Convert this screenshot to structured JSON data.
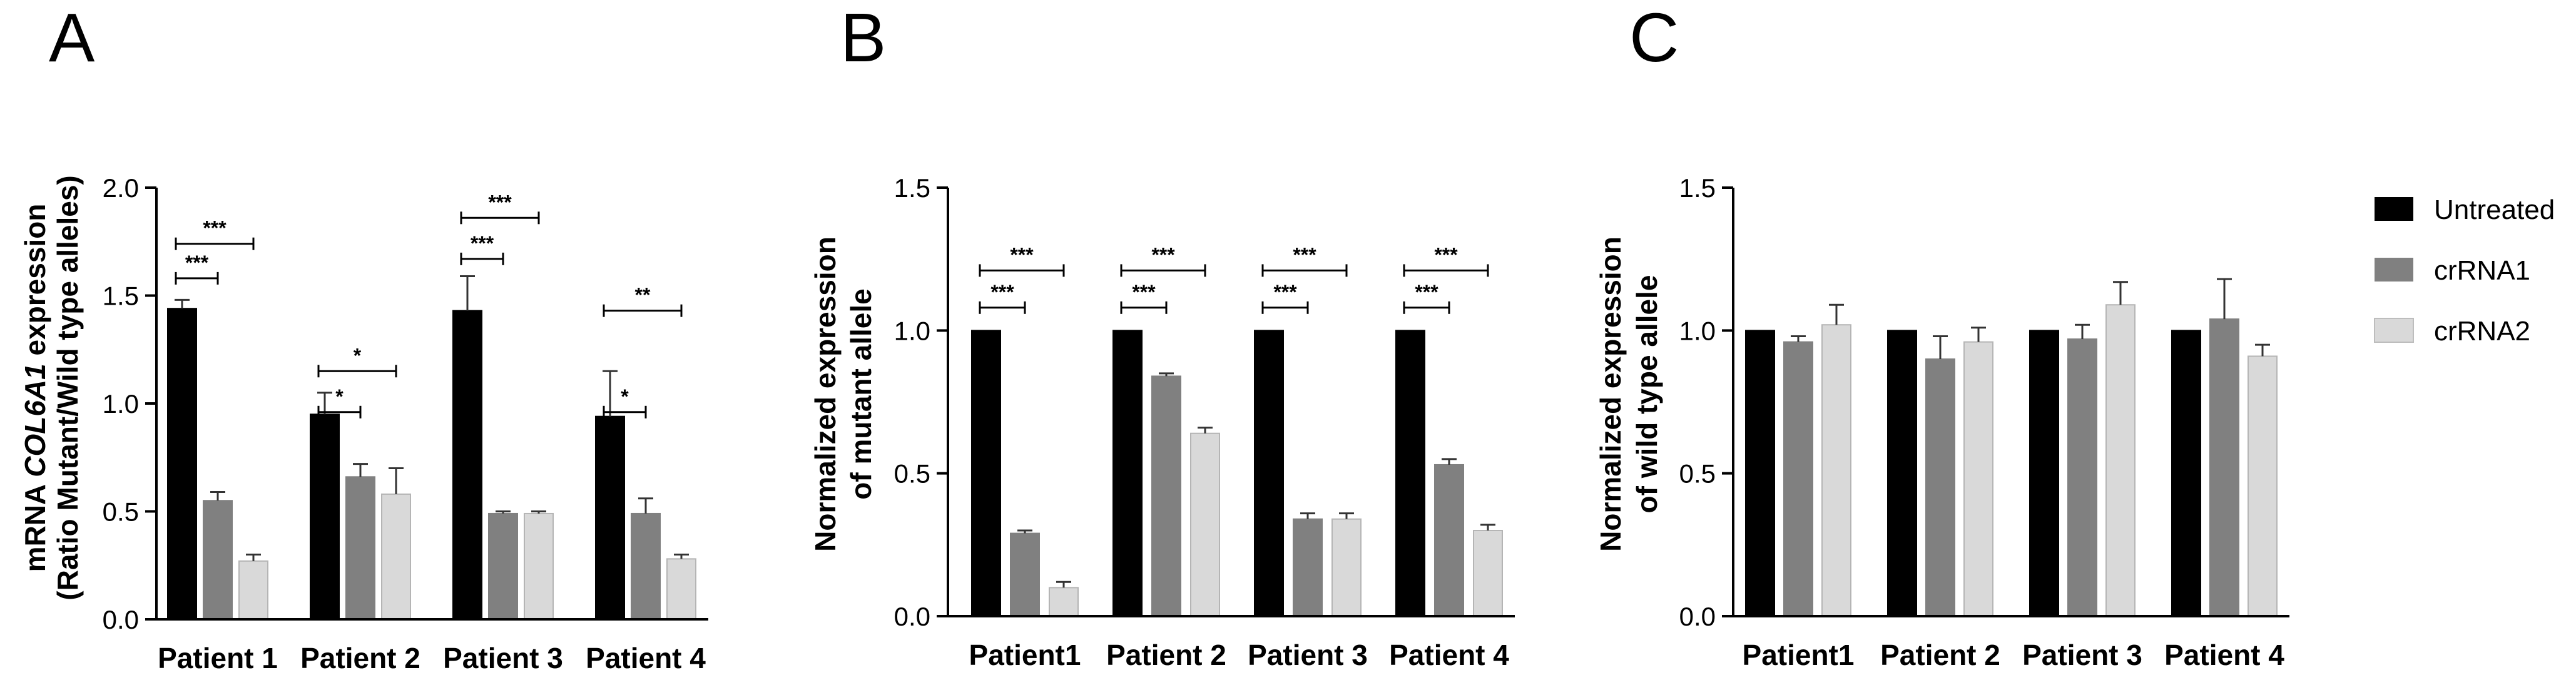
{
  "colors": {
    "Untreated": "#000000",
    "crRNA1": "#808080",
    "crRNA2": "#d9d9d9"
  },
  "legend": {
    "position": "right",
    "entries": [
      {
        "name": "Untreated",
        "color": "#000000"
      },
      {
        "name": "crRNA1",
        "color": "#808080"
      },
      {
        "name": "crRNA2",
        "color": "#d9d9d9"
      }
    ]
  },
  "chart_data": [
    {
      "type": "bar",
      "panel_letter": "A",
      "ylabel_line1_prefix": "mRNA ",
      "ylabel_line1_gene": "COL6A1",
      "ylabel_line1_suffix": " expression",
      "ylabel_line2": "(Ratio Mutant/Wild type alleles)",
      "ylim": [
        0,
        2.0
      ],
      "yticks": [
        "0.0",
        "0.5",
        "1.0",
        "1.5",
        "2.0"
      ],
      "categories": [
        "Patient 1",
        "Patient 2",
        "Patient 3",
        "Patient 4"
      ],
      "series": [
        {
          "name": "Untreated",
          "values": [
            1.44,
            0.95,
            1.43,
            0.94
          ],
          "errors": [
            0.04,
            0.1,
            0.16,
            0.21
          ]
        },
        {
          "name": "crRNA1",
          "values": [
            0.55,
            0.66,
            0.49,
            0.49
          ],
          "errors": [
            0.04,
            0.06,
            0.01,
            0.07
          ]
        },
        {
          "name": "crRNA2",
          "values": [
            0.27,
            0.58,
            0.49,
            0.28
          ],
          "errors": [
            0.03,
            0.12,
            0.01,
            0.02
          ]
        }
      ],
      "significance": [
        [
          {
            "from": 0,
            "to": 1,
            "label": "***",
            "y": 1.58
          },
          {
            "from": 0,
            "to": 2,
            "label": "***",
            "y": 1.74
          }
        ],
        [
          {
            "from": 0,
            "to": 1,
            "label": "*",
            "y": 0.96
          },
          {
            "from": 0,
            "to": 2,
            "label": "*",
            "y": 1.15
          }
        ],
        [
          {
            "from": 0,
            "to": 1,
            "label": "***",
            "y": 1.67
          },
          {
            "from": 0,
            "to": 2,
            "label": "***",
            "y": 1.86
          }
        ],
        [
          {
            "from": 0,
            "to": 1,
            "label": "*",
            "y": 0.96
          },
          {
            "from": 0,
            "to": 2,
            "label": "**",
            "y": 1.43
          }
        ]
      ]
    },
    {
      "type": "bar",
      "panel_letter": "B",
      "ylabel_line1": "Normalized expression",
      "ylabel_line2": "of mutant allele",
      "ylim": [
        0,
        1.5
      ],
      "yticks": [
        "0.0",
        "0.5",
        "1.0",
        "1.5"
      ],
      "categories": [
        "Patient1",
        "Patient 2",
        "Patient 3",
        "Patient 4"
      ],
      "series": [
        {
          "name": "Untreated",
          "values": [
            1.0,
            1.0,
            1.0,
            1.0
          ],
          "errors": [
            0,
            0,
            0,
            0
          ]
        },
        {
          "name": "crRNA1",
          "values": [
            0.29,
            0.84,
            0.34,
            0.53
          ],
          "errors": [
            0.01,
            0.01,
            0.02,
            0.02
          ]
        },
        {
          "name": "crRNA2",
          "values": [
            0.1,
            0.64,
            0.34,
            0.3
          ],
          "errors": [
            0.02,
            0.02,
            0.02,
            0.02
          ]
        }
      ],
      "significance": [
        [
          {
            "from": 0,
            "to": 1,
            "label": "***",
            "y": 1.08
          },
          {
            "from": 0,
            "to": 2,
            "label": "***",
            "y": 1.21
          }
        ],
        [
          {
            "from": 0,
            "to": 1,
            "label": "***",
            "y": 1.08
          },
          {
            "from": 0,
            "to": 2,
            "label": "***",
            "y": 1.21
          }
        ],
        [
          {
            "from": 0,
            "to": 1,
            "label": "***",
            "y": 1.08
          },
          {
            "from": 0,
            "to": 2,
            "label": "***",
            "y": 1.21
          }
        ],
        [
          {
            "from": 0,
            "to": 1,
            "label": "***",
            "y": 1.08
          },
          {
            "from": 0,
            "to": 2,
            "label": "***",
            "y": 1.21
          }
        ]
      ]
    },
    {
      "type": "bar",
      "panel_letter": "C",
      "ylabel_line1": "Normalized expression",
      "ylabel_line2": "of wild type allele",
      "ylim": [
        0,
        1.5
      ],
      "yticks": [
        "0.0",
        "0.5",
        "1.0",
        "1.5"
      ],
      "categories": [
        "Patient1",
        "Patient 2",
        "Patient 3",
        "Patient 4"
      ],
      "series": [
        {
          "name": "Untreated",
          "values": [
            1.0,
            1.0,
            1.0,
            1.0
          ],
          "errors": [
            0,
            0,
            0,
            0
          ]
        },
        {
          "name": "crRNA1",
          "values": [
            0.96,
            0.9,
            0.97,
            1.04
          ],
          "errors": [
            0.02,
            0.08,
            0.05,
            0.14
          ]
        },
        {
          "name": "crRNA2",
          "values": [
            1.02,
            0.96,
            1.09,
            0.91
          ],
          "errors": [
            0.07,
            0.05,
            0.08,
            0.04
          ]
        }
      ],
      "significance": []
    }
  ]
}
